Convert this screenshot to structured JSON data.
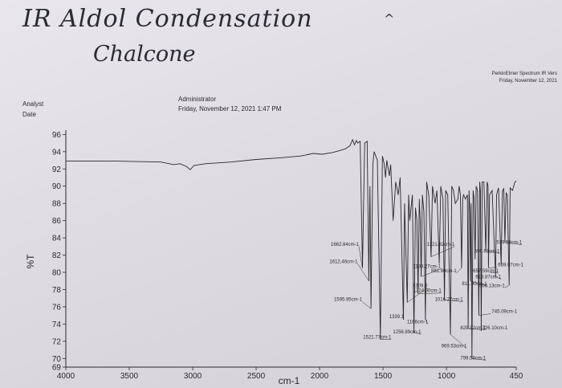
{
  "notes": {
    "title": "IR Aldol Condensation",
    "subtitle": "Chalcone",
    "mark": "^"
  },
  "header": {
    "analyst_label": "Analyst",
    "date_label": "Date",
    "operator": "Administrator",
    "datetime": "Friday, November 12, 2021 1:47 PM",
    "software": "PerkinElmer Spectrum IR Vers",
    "software_date": "Friday, November 12, 2021"
  },
  "chart_data": {
    "type": "line",
    "title": "",
    "xlabel": "cm-1",
    "ylabel": "%T",
    "xlim": [
      4000,
      450
    ],
    "ylim": [
      69,
      96.5
    ],
    "x_reversed": true,
    "x_ticks": [
      {
        "value": 4000,
        "label": "4000"
      },
      {
        "value": 3500,
        "label": "3500"
      },
      {
        "value": 3000,
        "label": "3000"
      },
      {
        "value": 2500,
        "label": "2500"
      },
      {
        "value": 2000,
        "label": "2000"
      },
      {
        "value": 1500,
        "label": "1500"
      },
      {
        "value": 1000,
        "label": "1000"
      },
      {
        "value": 450,
        "label": "450"
      }
    ],
    "y_ticks": [
      {
        "value": 96,
        "label": "96"
      },
      {
        "value": 94,
        "label": "94"
      },
      {
        "value": 92,
        "label": "92"
      },
      {
        "value": 90,
        "label": "90"
      },
      {
        "value": 88,
        "label": "88"
      },
      {
        "value": 86,
        "label": "86"
      },
      {
        "value": 84,
        "label": "84"
      },
      {
        "value": 82,
        "label": "82"
      },
      {
        "value": 80,
        "label": "80"
      },
      {
        "value": 78,
        "label": "78"
      },
      {
        "value": 76,
        "label": "76"
      },
      {
        "value": 74,
        "label": "74"
      },
      {
        "value": 72,
        "label": "72"
      },
      {
        "value": 70,
        "label": "70"
      },
      {
        "value": 69,
        "label": "69"
      }
    ],
    "grid": false,
    "legend": "none",
    "line_color": "#2a2a2a",
    "spectrum": [
      [
        4000,
        92.9
      ],
      [
        3800,
        92.9
      ],
      [
        3600,
        92.9
      ],
      [
        3400,
        92.85
      ],
      [
        3250,
        92.8
      ],
      [
        3150,
        92.5
      ],
      [
        3100,
        92.6
      ],
      [
        3050,
        92.3
      ],
      [
        3020,
        91.9
      ],
      [
        2990,
        92.4
      ],
      [
        2900,
        92.6
      ],
      [
        2700,
        92.8
      ],
      [
        2500,
        93.1
      ],
      [
        2300,
        93.3
      ],
      [
        2150,
        93.5
      ],
      [
        2050,
        93.8
      ],
      [
        1980,
        93.7
      ],
      [
        1900,
        93.9
      ],
      [
        1800,
        94.3
      ],
      [
        1760,
        94.7
      ],
      [
        1740,
        95.4
      ],
      [
        1725,
        94.8
      ],
      [
        1710,
        95.3
      ],
      [
        1700,
        95.0
      ],
      [
        1680,
        95.2
      ],
      [
        1662,
        80.5
      ],
      [
        1645,
        95.0
      ],
      [
        1625,
        95.2
      ],
      [
        1612,
        79.0
      ],
      [
        1603,
        90.0
      ],
      [
        1595,
        75.8
      ],
      [
        1580,
        92.5
      ],
      [
        1570,
        94.0
      ],
      [
        1545,
        93.0
      ],
      [
        1521,
        72.2
      ],
      [
        1505,
        93.5
      ],
      [
        1490,
        92.5
      ],
      [
        1480,
        91.0
      ],
      [
        1470,
        93.0
      ],
      [
        1450,
        91.2
      ],
      [
        1440,
        92.5
      ],
      [
        1420,
        86.0
      ],
      [
        1400,
        90.5
      ],
      [
        1380,
        89.0
      ],
      [
        1365,
        91.0
      ],
      [
        1339,
        74.5
      ],
      [
        1330,
        88.0
      ],
      [
        1309,
        76.5
      ],
      [
        1298,
        89.0
      ],
      [
        1290,
        86.0
      ],
      [
        1268,
        89.0
      ],
      [
        1256,
        73.0
      ],
      [
        1244,
        87.5
      ],
      [
        1233,
        86.0
      ],
      [
        1224,
        77.5
      ],
      [
        1214,
        88.5
      ],
      [
        1207,
        86.0
      ],
      [
        1199,
        79.5
      ],
      [
        1190,
        89.0
      ],
      [
        1178,
        87.0
      ],
      [
        1166,
        74.5
      ],
      [
        1156,
        90.5
      ],
      [
        1140,
        89.0
      ],
      [
        1121,
        81.8
      ],
      [
        1110,
        90.0
      ],
      [
        1090,
        88.0
      ],
      [
        1075,
        89.5
      ],
      [
        1057,
        81.0
      ],
      [
        1045,
        90.0
      ],
      [
        1028,
        88.5
      ],
      [
        1016,
        76.8
      ],
      [
        1006,
        89.5
      ],
      [
        990,
        89.0
      ],
      [
        969,
        72.8
      ],
      [
        958,
        90.0
      ],
      [
        945,
        89.5
      ],
      [
        930,
        88.0
      ],
      [
        910,
        88.5
      ],
      [
        900,
        90.0
      ],
      [
        890,
        89.0
      ],
      [
        881,
        80.5
      ],
      [
        872,
        88.5
      ],
      [
        865,
        89.0
      ],
      [
        850,
        88.5
      ],
      [
        835,
        89.0
      ],
      [
        829,
        73.5
      ],
      [
        822,
        89.5
      ],
      [
        815,
        87.0
      ],
      [
        811,
        79.0
      ],
      [
        805,
        88.0
      ],
      [
        799,
        70.0
      ],
      [
        790,
        89.5
      ],
      [
        782,
        88.5
      ],
      [
        774,
        81.5
      ],
      [
        766,
        90.0
      ],
      [
        755,
        89.5
      ],
      [
        745,
        75.0
      ],
      [
        738,
        90.5
      ],
      [
        732,
        89.5
      ],
      [
        726,
        73.2
      ],
      [
        718,
        90.5
      ],
      [
        705,
        90.5
      ],
      [
        690,
        82.5
      ],
      [
        680,
        90.5
      ],
      [
        672,
        90.0
      ],
      [
        669,
        80.5
      ],
      [
        660,
        89.0
      ],
      [
        640,
        89.5
      ],
      [
        613,
        79.5
      ],
      [
        605,
        89.0
      ],
      [
        590,
        89.8
      ],
      [
        569,
        81.0
      ],
      [
        558,
        89.5
      ],
      [
        548,
        89.7
      ],
      [
        539,
        83.5
      ],
      [
        530,
        89.2
      ],
      [
        520,
        89.0
      ],
      [
        506,
        78.5
      ],
      [
        498,
        89.8
      ],
      [
        480,
        89.5
      ],
      [
        460,
        90.5
      ],
      [
        450,
        90.6
      ]
    ],
    "peak_labels": [
      {
        "x": 1662.84,
        "y": 80.5,
        "label": "1662.84cm-1",
        "tx": 1880,
        "ty": 83.0
      },
      {
        "x": 1612.46,
        "y": 79.0,
        "label": "1612.46cm-1",
        "tx": 1890,
        "ty": 81.0
      },
      {
        "x": 1595.95,
        "y": 75.8,
        "label": "1595.95cm-1",
        "tx": 1855,
        "ty": 76.6
      },
      {
        "x": 1521.77,
        "y": 72.2,
        "label": "1521.77cm-1",
        "tx": 1625,
        "ty": 72.2
      },
      {
        "x": 1339.1,
        "y": 74.5,
        "label": "1339.1",
        "tx": 1525,
        "ty": 74.6
      },
      {
        "x": 1309.0,
        "y": 76.5,
        "label": "1309.0",
        "tx": 1340,
        "ty": 78.2
      },
      {
        "x": 1256.89,
        "y": 73.0,
        "label": "1256.89cm-1",
        "tx": 1390,
        "ty": 72.8
      },
      {
        "x": 1224.3,
        "y": 77.5,
        "label": "1224.30cm-1",
        "tx": 1230,
        "ty": 77.6
      },
      {
        "x": 1199.27,
        "y": 79.5,
        "label": "1199.27cm-1",
        "tx": 1235,
        "ty": 80.4
      },
      {
        "x": 1166.0,
        "y": 74.5,
        "label": "1166cm-1",
        "tx": 1335,
        "ty": 74.0
      },
      {
        "x": 1121.82,
        "y": 81.8,
        "label": "1121.82cm-1",
        "tx": 1125,
        "ty": 83.0
      },
      {
        "x": 1016.27,
        "y": 76.8,
        "label": "1016.27cm-1",
        "tx": 1060,
        "ty": 76.6
      },
      {
        "x": 969.53,
        "y": 72.8,
        "label": "969.53cm-1",
        "tx": 1030,
        "ty": 71.2
      },
      {
        "x": 881.9,
        "y": 80.5,
        "label": "881.90cm-1",
        "tx": 1110,
        "ty": 79.9
      },
      {
        "x": 829.32,
        "y": 73.5,
        "label": "829.32cm-1",
        "tx": 880,
        "ty": 73.3
      },
      {
        "x": 811.9,
        "y": 79.0,
        "label": "811.90cm-1",
        "tx": 870,
        "ty": 78.4
      },
      {
        "x": 799.58,
        "y": 70.0,
        "label": "799.58cm-1",
        "tx": 880,
        "ty": 69.8
      },
      {
        "x": 745.09,
        "y": 75.0,
        "label": "745.09cm-1",
        "tx": 650,
        "ty": 75.2
      },
      {
        "x": 726.1,
        "y": 73.2,
        "label": "726.10cm-1",
        "tx": 725,
        "ty": 73.3
      },
      {
        "x": 690.63,
        "y": 82.5,
        "label": "690.63cm-1",
        "tx": 770,
        "ty": 82.2
      },
      {
        "x": 669.07,
        "y": 80.5,
        "label": "669.07cm-1",
        "tx": 600,
        "ty": 80.6
      },
      {
        "x": 657.59,
        "y": 80.0,
        "label": "657.59cm-1",
        "tx": 780,
        "ty": 79.9
      },
      {
        "x": 613.87,
        "y": 79.5,
        "label": "613.87cm-1",
        "tx": 760,
        "ty": 79.2
      },
      {
        "x": 539.58,
        "y": 83.5,
        "label": "539.58cm-1",
        "tx": 595,
        "ty": 83.2
      },
      {
        "x": 506.13,
        "y": 78.5,
        "label": "506.13cm-1",
        "tx": 730,
        "ty": 78.2
      }
    ]
  }
}
